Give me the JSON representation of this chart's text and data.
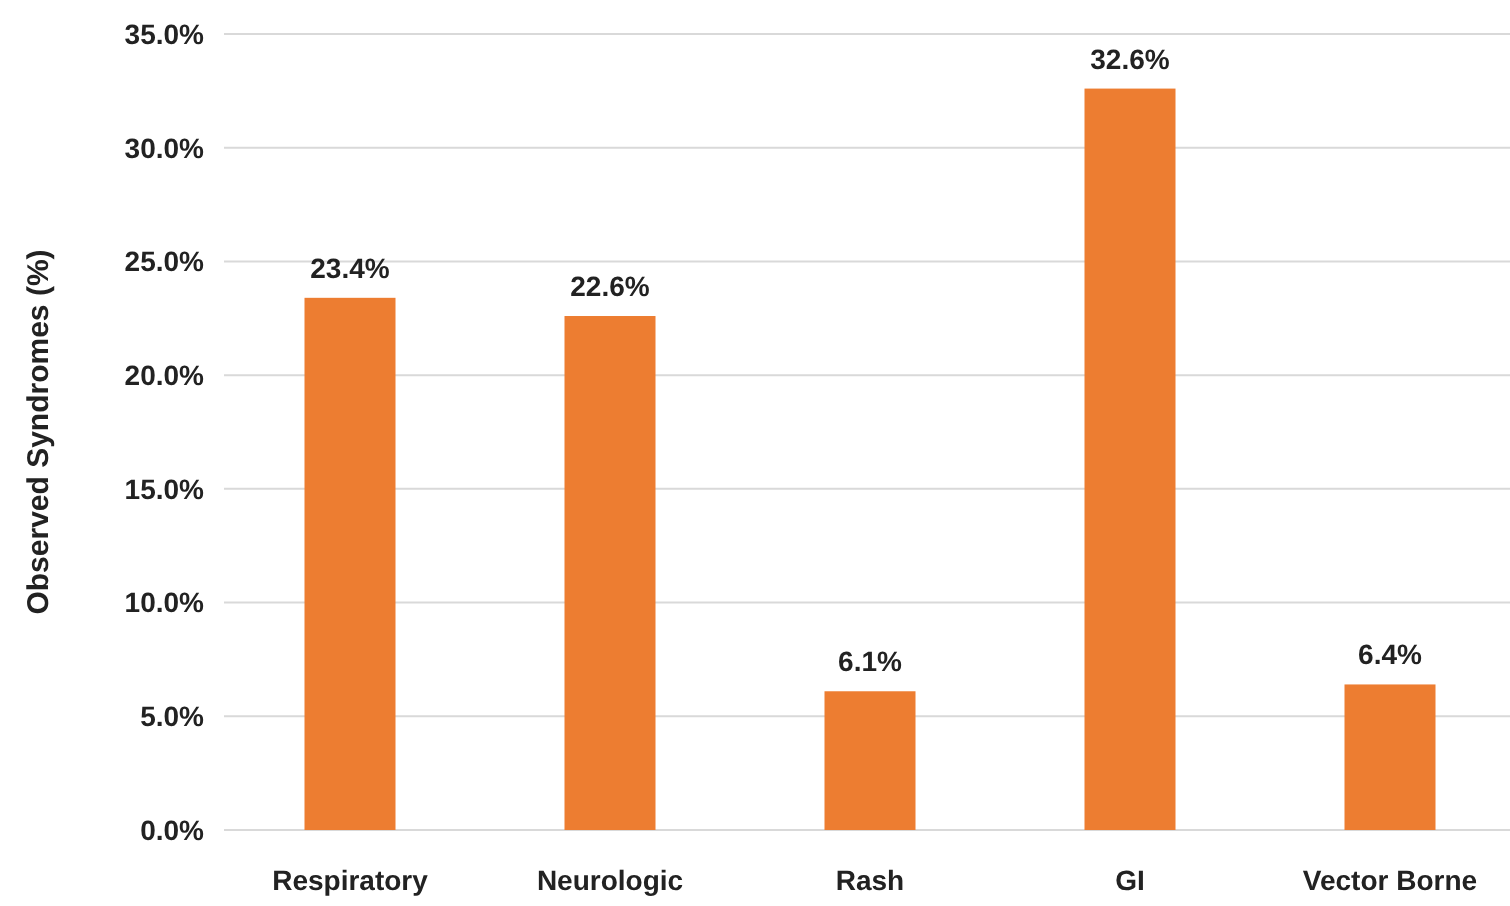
{
  "chart_data": {
    "type": "bar",
    "ylabel": "Observed Syndromes (%)",
    "categories": [
      "Respiratory",
      "Neurologic",
      "Rash",
      "GI",
      "Vector Borne"
    ],
    "values": [
      23.4,
      22.6,
      6.1,
      32.6,
      6.4
    ],
    "value_labels": [
      "23.4%",
      "22.6%",
      "6.1%",
      "32.6%",
      "6.4%"
    ],
    "color": "#ed7d31",
    "ylim": [
      0,
      35
    ],
    "yticks": [
      {
        "value": 0,
        "label": "0.0%"
      },
      {
        "value": 5,
        "label": "5.0%"
      },
      {
        "value": 10,
        "label": "10.0%"
      },
      {
        "value": 15,
        "label": "15.0%"
      },
      {
        "value": 20,
        "label": "20.0%"
      },
      {
        "value": 25,
        "label": "25.0%"
      },
      {
        "value": 30,
        "label": "30.0%"
      },
      {
        "value": 35,
        "label": "35.0%"
      }
    ],
    "grid": "y"
  }
}
